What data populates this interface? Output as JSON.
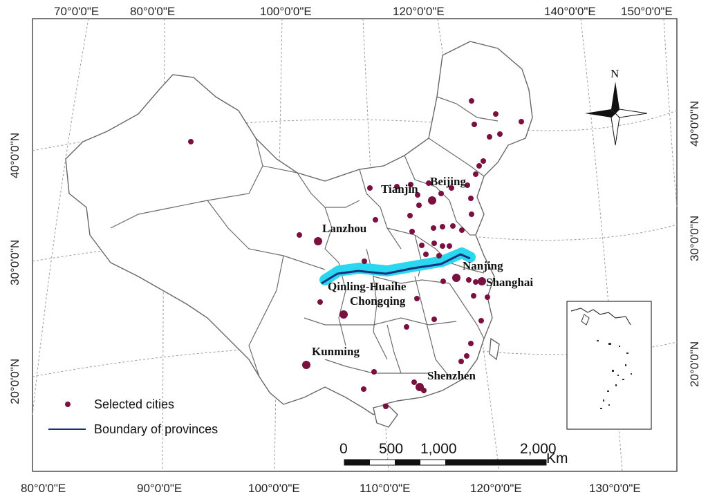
{
  "map": {
    "top_lon_labels": [
      "70°0'0\"E",
      "80°0'0\"E",
      "100°0'0\"E",
      "120°0'0\"E",
      "140°0'0\"E",
      "150°0'0\"E"
    ],
    "bottom_lon_labels": [
      "80°0'0\"E",
      "90°0'0\"E",
      "100°0'0\"E",
      "110°0'0\"E",
      "120°0'0\"E",
      "130°0'0\"E"
    ],
    "left_lat_labels": [
      "40°0'0\"N",
      "30°0'0\"N",
      "20°0'0\"N"
    ],
    "right_lat_labels": [
      "40°0'0\"N",
      "30°0'0\"N",
      "20°0'0\"N"
    ],
    "north_label": "N",
    "cities": {
      "beijing": "Beijing",
      "tianjin": "Tianjin",
      "lanzhou": "Lanzhou",
      "nanjing": "Nanjing",
      "qinling": "Qinling-Huaihe",
      "shanghai": "Shanghai",
      "chongqing": "Chongqing",
      "kunming": "Kunming",
      "shenzhen": "Shenzhen"
    },
    "legend": {
      "selected_cities": "Selected cities",
      "boundary": "Boundary of provinces"
    },
    "scale": {
      "labels": [
        "0",
        "500",
        "1,000",
        "2,000"
      ],
      "unit": "Km"
    },
    "colors": {
      "city_dot": "#7a1040",
      "qinling_line": "#16307a",
      "qinling_band": "#29d8f0",
      "boundary": "#6b6b6b",
      "graticule": "#9a9a9a"
    }
  }
}
